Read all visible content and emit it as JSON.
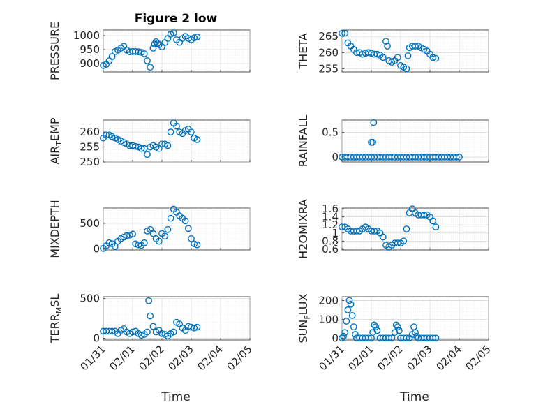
{
  "figure": {
    "title": "Figure 2 low",
    "xlabel": "Time",
    "marker_color": "#0072bd"
  },
  "chart_data": [
    {
      "type": "scatter",
      "ylabel": "PRESSURE",
      "ylim": [
        870,
        1020
      ],
      "yticks": [
        900,
        950,
        1000
      ],
      "xlim": [
        0,
        5
      ],
      "x": [
        0.0,
        0.1,
        0.2,
        0.3,
        0.4,
        0.5,
        0.6,
        0.7,
        0.8,
        0.9,
        1.0,
        1.1,
        1.2,
        1.3,
        1.4,
        1.5,
        1.6,
        1.7,
        1.75,
        1.8,
        1.85,
        1.9,
        2.0,
        2.1,
        2.2,
        2.3,
        2.4,
        2.5,
        2.6,
        2.7,
        2.8,
        2.9,
        3.0,
        3.1,
        3.2
      ],
      "y": [
        893,
        897,
        910,
        925,
        943,
        948,
        955,
        962,
        948,
        942,
        943,
        943,
        942,
        940,
        935,
        910,
        887,
        955,
        970,
        978,
        972,
        968,
        960,
        975,
        990,
        1005,
        1010,
        985,
        976,
        990,
        997,
        990,
        985,
        992,
        995
      ]
    },
    {
      "type": "scatter",
      "ylabel": "THETA",
      "ylim": [
        254,
        267
      ],
      "yticks": [
        255,
        260,
        265
      ],
      "xlim": [
        0,
        5
      ],
      "x": [
        0.0,
        0.1,
        0.2,
        0.3,
        0.4,
        0.5,
        0.6,
        0.7,
        0.8,
        0.9,
        1.0,
        1.1,
        1.2,
        1.3,
        1.4,
        1.5,
        1.55,
        1.6,
        1.7,
        1.8,
        1.9,
        2.0,
        2.1,
        2.2,
        2.25,
        2.3,
        2.4,
        2.5,
        2.6,
        2.7,
        2.8,
        2.9,
        3.0,
        3.1,
        3.2
      ],
      "y": [
        266,
        266,
        263,
        262,
        261,
        260,
        260,
        259.5,
        259.8,
        260,
        259.8,
        259.5,
        259.5,
        259.2,
        258.5,
        263.5,
        262,
        257.5,
        257,
        257.5,
        258.5,
        256,
        255.5,
        255,
        259,
        261.5,
        262,
        262,
        262,
        261.5,
        261,
        260.5,
        259.5,
        258.5,
        258.2
      ]
    },
    {
      "type": "scatter",
      "ylabel": "AIR_TEMP",
      "ylim": [
        250,
        264
      ],
      "yticks": [
        250,
        255,
        260
      ],
      "xlim": [
        0,
        5
      ],
      "x": [
        0.0,
        0.1,
        0.2,
        0.3,
        0.4,
        0.5,
        0.6,
        0.7,
        0.8,
        0.9,
        1.0,
        1.1,
        1.2,
        1.3,
        1.4,
        1.5,
        1.6,
        1.7,
        1.8,
        1.9,
        2.0,
        2.1,
        2.2,
        2.3,
        2.4,
        2.5,
        2.6,
        2.7,
        2.8,
        2.9,
        3.0,
        3.1,
        3.2
      ],
      "y": [
        258,
        259,
        259,
        258.5,
        258,
        257.5,
        257,
        256.5,
        256,
        255.5,
        255.5,
        255.2,
        255,
        254.5,
        254.5,
        252.5,
        255,
        255.5,
        255,
        254.5,
        256,
        256,
        255.5,
        260,
        263,
        262,
        260,
        259.5,
        260.5,
        261,
        260,
        258,
        257.5
      ]
    },
    {
      "type": "scatter",
      "ylabel": "RAINFALL",
      "ylim": [
        -0.1,
        0.75
      ],
      "yticks": [
        0,
        0.5
      ],
      "xlim": [
        0,
        5
      ],
      "x": [
        0.0,
        0.1,
        0.2,
        0.3,
        0.4,
        0.5,
        0.6,
        0.7,
        0.8,
        0.9,
        1.0,
        1.1,
        1.2,
        1.3,
        1.4,
        1.5,
        1.6,
        1.7,
        1.8,
        1.9,
        2.0,
        2.1,
        2.2,
        2.3,
        2.4,
        2.5,
        2.6,
        2.7,
        2.8,
        2.9,
        3.0,
        3.1,
        3.2,
        3.3,
        3.4,
        3.5,
        3.6,
        3.7,
        3.8,
        3.9,
        4.0,
        1.0,
        1.05,
        1.08
      ],
      "y": [
        0,
        0,
        0,
        0,
        0,
        0,
        0,
        0,
        0,
        0,
        0,
        0,
        0,
        0,
        0,
        0,
        0,
        0,
        0,
        0,
        0,
        0,
        0,
        0,
        0,
        0,
        0,
        0,
        0,
        0,
        0,
        0,
        0,
        0,
        0,
        0,
        0,
        0,
        0,
        0,
        0,
        0.3,
        0.3,
        0.7
      ]
    },
    {
      "type": "scatter",
      "ylabel": "MIXDEPTH",
      "ylim": [
        -20,
        800
      ],
      "yticks": [
        0,
        500
      ],
      "xlim": [
        0,
        5
      ],
      "x": [
        0.0,
        0.1,
        0.2,
        0.3,
        0.4,
        0.5,
        0.6,
        0.7,
        0.8,
        0.9,
        1.0,
        1.1,
        1.2,
        1.3,
        1.4,
        1.5,
        1.6,
        1.7,
        1.8,
        1.9,
        2.0,
        2.1,
        2.2,
        2.3,
        2.4,
        2.5,
        2.6,
        2.7,
        2.8,
        2.9,
        3.0,
        3.1,
        3.2
      ],
      "y": [
        10,
        60,
        120,
        100,
        50,
        150,
        200,
        230,
        260,
        270,
        290,
        100,
        80,
        70,
        120,
        350,
        380,
        300,
        200,
        150,
        300,
        250,
        380,
        600,
        780,
        720,
        650,
        600,
        550,
        400,
        200,
        100,
        80
      ]
    },
    {
      "type": "scatter",
      "ylabel": "H2OMIXRA",
      "ylim": [
        0.58,
        1.62
      ],
      "yticks": [
        0.6,
        0.8,
        1,
        1.2,
        1.4,
        1.6
      ],
      "xlim": [
        0,
        5
      ],
      "x": [
        0.0,
        0.1,
        0.2,
        0.3,
        0.4,
        0.5,
        0.6,
        0.7,
        0.8,
        0.9,
        1.0,
        1.1,
        1.2,
        1.3,
        1.4,
        1.5,
        1.6,
        1.7,
        1.8,
        1.9,
        2.0,
        2.1,
        2.2,
        2.3,
        2.4,
        2.5,
        2.6,
        2.7,
        2.8,
        2.9,
        3.0,
        3.1,
        3.2
      ],
      "y": [
        1.15,
        1.15,
        1.1,
        1.05,
        1.05,
        1.05,
        1.05,
        1.1,
        1.15,
        1.1,
        1.05,
        1.05,
        1.05,
        1.0,
        0.9,
        0.7,
        0.65,
        0.7,
        0.75,
        0.75,
        0.75,
        0.8,
        1.1,
        1.5,
        1.6,
        1.5,
        1.45,
        1.45,
        1.45,
        1.45,
        1.4,
        1.3,
        1.15
      ]
    },
    {
      "type": "scatter",
      "ylabel": "TERR_MSL",
      "ylim": [
        -20,
        520
      ],
      "yticks": [
        0,
        500
      ],
      "xlim": [
        0,
        5
      ],
      "x": [
        0.0,
        0.1,
        0.2,
        0.3,
        0.4,
        0.5,
        0.6,
        0.7,
        0.8,
        0.9,
        1.0,
        1.1,
        1.2,
        1.3,
        1.4,
        1.5,
        1.55,
        1.6,
        1.7,
        1.8,
        1.9,
        2.0,
        2.1,
        2.2,
        2.3,
        2.4,
        2.5,
        2.6,
        2.7,
        2.8,
        2.9,
        3.0,
        3.1,
        3.2
      ],
      "y": [
        90,
        90,
        90,
        90,
        90,
        60,
        100,
        120,
        80,
        60,
        80,
        90,
        60,
        40,
        50,
        80,
        470,
        280,
        150,
        80,
        100,
        60,
        50,
        30,
        60,
        80,
        200,
        180,
        130,
        100,
        150,
        140,
        130,
        140
      ]
    },
    {
      "type": "scatter",
      "ylabel": "SUN_FLUX",
      "ylim": [
        -10,
        220
      ],
      "yticks": [
        0,
        100,
        200
      ],
      "xlim": [
        0,
        5
      ],
      "x": [
        0.0,
        0.05,
        0.1,
        0.15,
        0.2,
        0.25,
        0.3,
        0.35,
        0.4,
        0.45,
        0.5,
        0.6,
        0.7,
        0.8,
        0.9,
        1.0,
        1.05,
        1.1,
        1.15,
        1.2,
        1.3,
        1.4,
        1.5,
        1.6,
        1.7,
        1.8,
        1.85,
        1.9,
        1.95,
        2.0,
        2.1,
        2.2,
        2.3,
        2.4,
        2.45,
        2.5,
        2.55,
        2.6,
        2.7,
        2.8,
        2.9,
        3.0,
        3.1,
        3.2
      ],
      "y": [
        0,
        10,
        30,
        90,
        150,
        200,
        180,
        120,
        60,
        20,
        0,
        0,
        0,
        0,
        0,
        0,
        30,
        70,
        60,
        40,
        0,
        0,
        0,
        0,
        0,
        30,
        70,
        60,
        40,
        0,
        0,
        0,
        0,
        20,
        60,
        30,
        10,
        0,
        0,
        0,
        0,
        0,
        0,
        0
      ]
    }
  ],
  "xticks": {
    "labels": [
      "01/31",
      "02/01",
      "02/02",
      "02/03",
      "02/04",
      "02/05"
    ]
  }
}
